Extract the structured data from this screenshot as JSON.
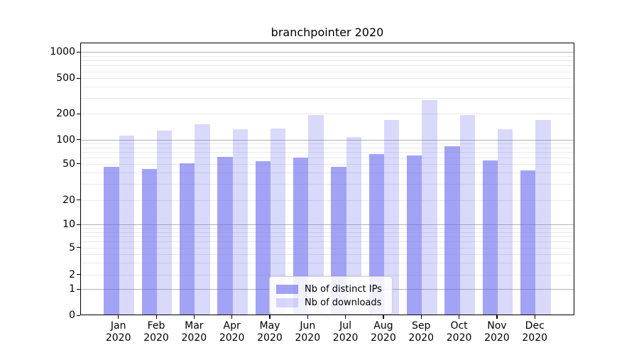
{
  "title": "branchpointer 2020",
  "legend": {
    "items": [
      {
        "label": "Nb of distinct IPs",
        "color": "rgba(102,102,238,0.6)"
      },
      {
        "label": "Nb of downloads",
        "color": "rgba(102,102,238,0.25)"
      }
    ]
  },
  "colors": {
    "bar_base": "#6666ee",
    "bar_dark": "rgba(102,102,238,0.6)",
    "bar_light": "rgba(102,102,238,0.25)",
    "grid_major": "#b2b2b2",
    "grid_minor": "#e9e9e9",
    "spine": "#000000",
    "text": "#000000"
  },
  "axes": {
    "y_tick_labels": [
      "0",
      "1",
      "2",
      "5",
      "10",
      "20",
      "50",
      "100",
      "200",
      "500",
      "1000"
    ],
    "x_tick_labels": [
      {
        "month": "Jan",
        "year": "2020"
      },
      {
        "month": "Feb",
        "year": "2020"
      },
      {
        "month": "Mar",
        "year": "2020"
      },
      {
        "month": "Apr",
        "year": "2020"
      },
      {
        "month": "May",
        "year": "2020"
      },
      {
        "month": "Jun",
        "year": "2020"
      },
      {
        "month": "Jul",
        "year": "2020"
      },
      {
        "month": "Aug",
        "year": "2020"
      },
      {
        "month": "Sep",
        "year": "2020"
      },
      {
        "month": "Oct",
        "year": "2020"
      },
      {
        "month": "Nov",
        "year": "2020"
      },
      {
        "month": "Dec",
        "year": "2020"
      }
    ]
  },
  "chart_data": {
    "type": "bar",
    "title": "branchpointer 2020",
    "categories": [
      "Jan 2020",
      "Feb 2020",
      "Mar 2020",
      "Apr 2020",
      "May 2020",
      "Jun 2020",
      "Jul 2020",
      "Aug 2020",
      "Sep 2020",
      "Oct 2020",
      "Nov 2020",
      "Dec 2020"
    ],
    "series": [
      {
        "name": "Nb of distinct IPs",
        "values": [
          46,
          44,
          51,
          61,
          54,
          60,
          46,
          66,
          63,
          83,
          55,
          42
        ]
      },
      {
        "name": "Nb of downloads",
        "values": [
          112,
          127,
          150,
          132,
          135,
          195,
          107,
          168,
          286,
          194,
          133,
          170
        ]
      }
    ],
    "yscale": "symlog",
    "y_ticks": [
      0,
      1,
      2,
      5,
      10,
      20,
      50,
      100,
      200,
      500,
      1000
    ],
    "ylim": [
      0,
      1300
    ],
    "grid": true,
    "legend_position": "lower center"
  }
}
